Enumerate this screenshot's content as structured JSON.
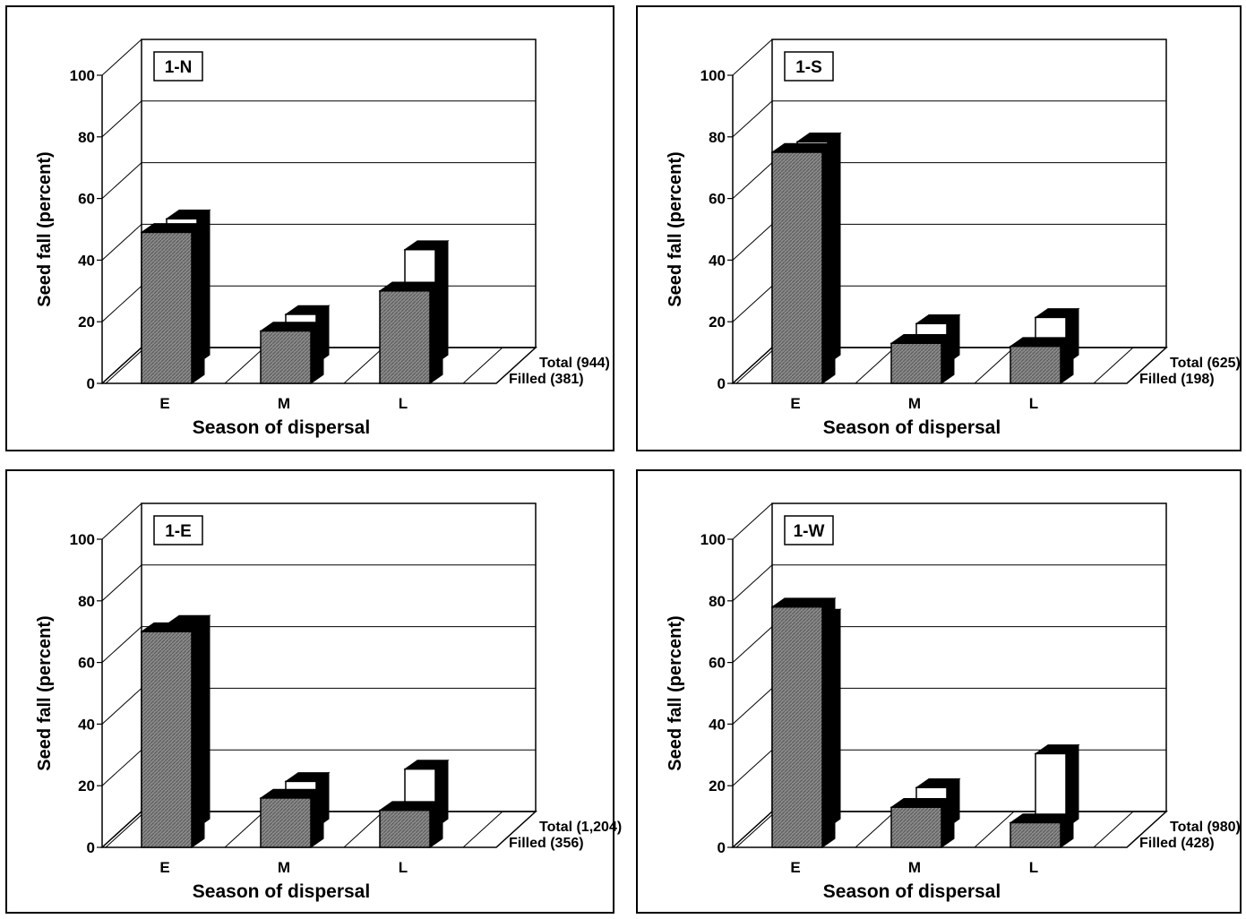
{
  "chart_data": [
    {
      "type": "bar",
      "title": "1-N",
      "xlabel": "Season of dispersal",
      "ylabel": "Seed fall (percent)",
      "ylim": [
        0,
        100
      ],
      "yticks": [
        "0",
        "20",
        "40",
        "60",
        "80",
        "100"
      ],
      "categories": [
        "E",
        "M",
        "L"
      ],
      "series": [
        {
          "name": "Filled (381)",
          "values": [
            49,
            17,
            30
          ]
        },
        {
          "name": "Total (944)",
          "values": [
            47,
            16,
            37
          ]
        }
      ],
      "grid": true,
      "legend": "right of floor"
    },
    {
      "type": "bar",
      "title": "1-S",
      "xlabel": "Season of dispersal",
      "ylabel": "Seed fall (percent)",
      "ylim": [
        0,
        100
      ],
      "yticks": [
        "0",
        "20",
        "40",
        "60",
        "80",
        "100"
      ],
      "categories": [
        "E",
        "M",
        "L"
      ],
      "series": [
        {
          "name": "Filled (198)",
          "values": [
            75,
            13,
            12
          ]
        },
        {
          "name": "Total (625)",
          "values": [
            72,
            13,
            15
          ]
        }
      ],
      "grid": true,
      "legend": "right of floor"
    },
    {
      "type": "bar",
      "title": "1-E",
      "xlabel": "Season of dispersal",
      "ylabel": "Seed fall (percent)",
      "ylim": [
        0,
        100
      ],
      "yticks": [
        "0",
        "20",
        "40",
        "60",
        "80",
        "100"
      ],
      "categories": [
        "E",
        "M",
        "L"
      ],
      "series": [
        {
          "name": "Filled (356)",
          "values": [
            70,
            16,
            12
          ]
        },
        {
          "name": "Total (1,204)",
          "values": [
            66,
            15,
            19
          ]
        }
      ],
      "grid": true,
      "legend": "right of floor"
    },
    {
      "type": "bar",
      "title": "1-W",
      "xlabel": "Season of dispersal",
      "ylabel": "Seed fall (percent)",
      "ylim": [
        0,
        100
      ],
      "yticks": [
        "0",
        "20",
        "40",
        "60",
        "80",
        "100"
      ],
      "categories": [
        "E",
        "M",
        "L"
      ],
      "series": [
        {
          "name": "Filled (428)",
          "values": [
            78,
            13,
            8
          ]
        },
        {
          "name": "Total (980)",
          "values": [
            68,
            13,
            24
          ]
        }
      ],
      "grid": true,
      "legend": "right of floor"
    }
  ],
  "colors": {
    "filled_face": "#8c8c8c",
    "filled_hatch": "#5a5a5a",
    "total_face": "#ffffff",
    "dark": "#000000",
    "background": "#ffffff"
  }
}
